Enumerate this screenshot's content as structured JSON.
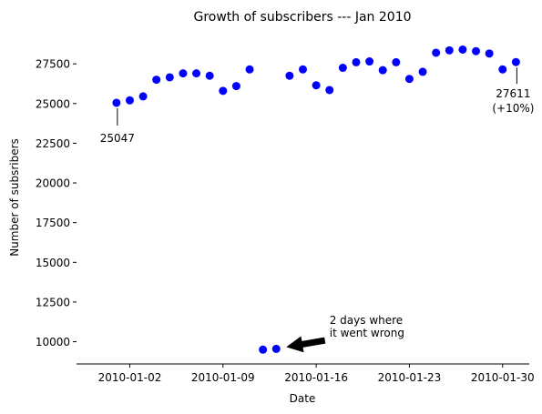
{
  "chart_data": {
    "type": "scatter",
    "title": "Growth of subscribers --- Jan 2010",
    "xlabel": "Date",
    "ylabel": "Number of subsribers",
    "x_ticks": [
      "2010-01-02",
      "2010-01-09",
      "2010-01-16",
      "2010-01-23",
      "2010-01-30"
    ],
    "y_ticks": [
      10000,
      12500,
      15000,
      17500,
      20000,
      22500,
      25000,
      27500
    ],
    "x_range": [
      "2009-12-29",
      "2010-02-01"
    ],
    "y_range": [
      8600,
      29400
    ],
    "grid": false,
    "marker_color": "#0000ff",
    "series": [
      {
        "points": [
          {
            "x": "2010-01-01",
            "y": 25047
          },
          {
            "x": "2010-01-02",
            "y": 25200
          },
          {
            "x": "2010-01-03",
            "y": 25450
          },
          {
            "x": "2010-01-04",
            "y": 26500
          },
          {
            "x": "2010-01-05",
            "y": 26650
          },
          {
            "x": "2010-01-06",
            "y": 26900
          },
          {
            "x": "2010-01-07",
            "y": 26900
          },
          {
            "x": "2010-01-08",
            "y": 26750
          },
          {
            "x": "2010-01-09",
            "y": 25800
          },
          {
            "x": "2010-01-10",
            "y": 26100
          },
          {
            "x": "2010-01-11",
            "y": 27150
          },
          {
            "x": "2010-01-12",
            "y": 9500
          },
          {
            "x": "2010-01-13",
            "y": 9550
          },
          {
            "x": "2010-01-14",
            "y": 26750
          },
          {
            "x": "2010-01-15",
            "y": 27150
          },
          {
            "x": "2010-01-16",
            "y": 26150
          },
          {
            "x": "2010-01-17",
            "y": 25850
          },
          {
            "x": "2010-01-18",
            "y": 27250
          },
          {
            "x": "2010-01-19",
            "y": 27600
          },
          {
            "x": "2010-01-20",
            "y": 27650
          },
          {
            "x": "2010-01-21",
            "y": 27100
          },
          {
            "x": "2010-01-22",
            "y": 27600
          },
          {
            "x": "2010-01-23",
            "y": 26550
          },
          {
            "x": "2010-01-24",
            "y": 27000
          },
          {
            "x": "2010-01-25",
            "y": 28200
          },
          {
            "x": "2010-01-26",
            "y": 28350
          },
          {
            "x": "2010-01-27",
            "y": 28400
          },
          {
            "x": "2010-01-28",
            "y": 28300
          },
          {
            "x": "2010-01-29",
            "y": 28150
          },
          {
            "x": "2010-01-30",
            "y": 27150
          },
          {
            "x": "2010-01-31",
            "y": 27611
          }
        ]
      }
    ],
    "annotations": [
      {
        "lines": [
          "25047"
        ],
        "point": {
          "x": "2010-01-01",
          "y": 25047
        },
        "anchor": "middle"
      },
      {
        "lines": [
          "27611",
          "(+10%)"
        ],
        "point": {
          "x": "2010-01-31",
          "y": 27611
        },
        "anchor": "middle"
      },
      {
        "lines": [
          "2 days where",
          "it went wrong"
        ],
        "point": {
          "x": "2010-01-13",
          "y": 9550
        },
        "text_at": {
          "x": "2010-01-17",
          "y": 11000
        },
        "anchor": "start",
        "arrow": true
      }
    ]
  }
}
